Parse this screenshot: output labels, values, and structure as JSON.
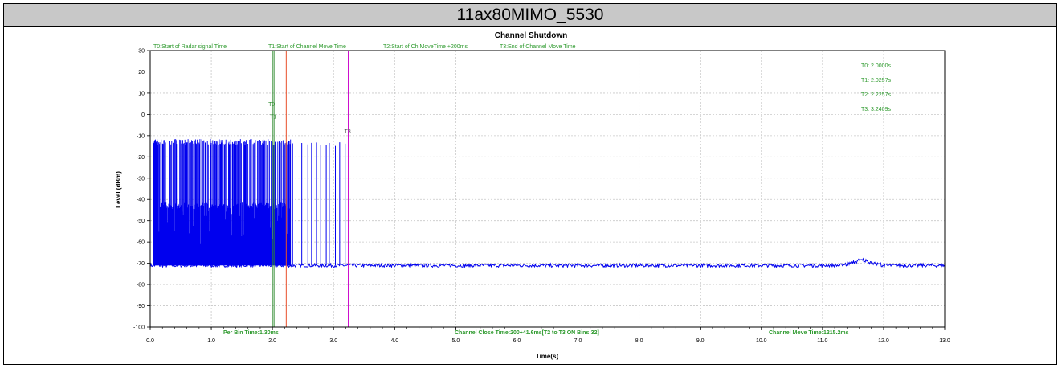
{
  "window": {
    "title": "11ax80MIMO_5530"
  },
  "chart_data": {
    "type": "line",
    "title": "Channel Shutdown",
    "xlabel": "Time(s)",
    "ylabel": "Level (dBm)",
    "xlim": [
      0,
      13
    ],
    "ylim": [
      -100,
      30
    ],
    "grid": true,
    "x_ticks": [
      "0.0",
      "1.0",
      "2.0",
      "3.0",
      "4.0",
      "5.0",
      "6.0",
      "7.0",
      "8.0",
      "9.0",
      "10.0",
      "11.0",
      "12.0",
      "13.0"
    ],
    "y_ticks": [
      "30",
      "20",
      "10",
      "0",
      "-10",
      "-20",
      "-30",
      "-40",
      "-50",
      "-60",
      "-70",
      "-80",
      "-90",
      "-100"
    ],
    "legend": [
      "T0:Start of Radar signal Time",
      "T1:Start of Channel Move Time",
      "T2:Start of Ch.MoveTime +200ms",
      "T3:End of Channel Move Time"
    ],
    "markers": [
      {
        "name": "T0",
        "x": 2.0,
        "color": "#2e8b2e",
        "label_y": 4
      },
      {
        "name": "T1",
        "x": 2.0257,
        "color": "#2e8b2e",
        "label_y": -2
      },
      {
        "name": "T2",
        "x": 2.2257,
        "color": "#e8502a",
        "label_y": null
      },
      {
        "name": "T3",
        "x": 3.2409,
        "color": "#cc00cc",
        "label_y": -9
      }
    ],
    "time_readouts": [
      "T0: 2.0000s",
      "T1: 2.0257s",
      "T2: 2.2257s",
      "T3: 3.2409s"
    ],
    "bottom_labels": {
      "per_bin": "Per Bin Time:1.30ms",
      "close": "Channel Close Time:200+41.6ms[T2 to T3 ON Bins:32]",
      "move": "Channel Move Time:1215.2ms"
    },
    "series": [
      {
        "color": "#0000ee",
        "noise_floor": -71,
        "dense_burst": {
          "x_start": 0.05,
          "x_end": 2.3,
          "peak_level": -13,
          "mid_level": -43
        },
        "sparse_pulses_x": [
          2.33,
          2.48,
          2.58,
          2.64,
          2.72,
          2.79,
          2.88,
          2.93,
          3.03,
          3.1,
          3.19
        ],
        "sparse_pulse_level": -14,
        "late_bump": {
          "x": 11.65,
          "level": -68.5
        }
      }
    ]
  },
  "colors": {
    "title_bar": "#c8c8c8",
    "legend_text": "#2e9a2e",
    "signal": "#0000ee",
    "grid": "#c8c8c8"
  }
}
